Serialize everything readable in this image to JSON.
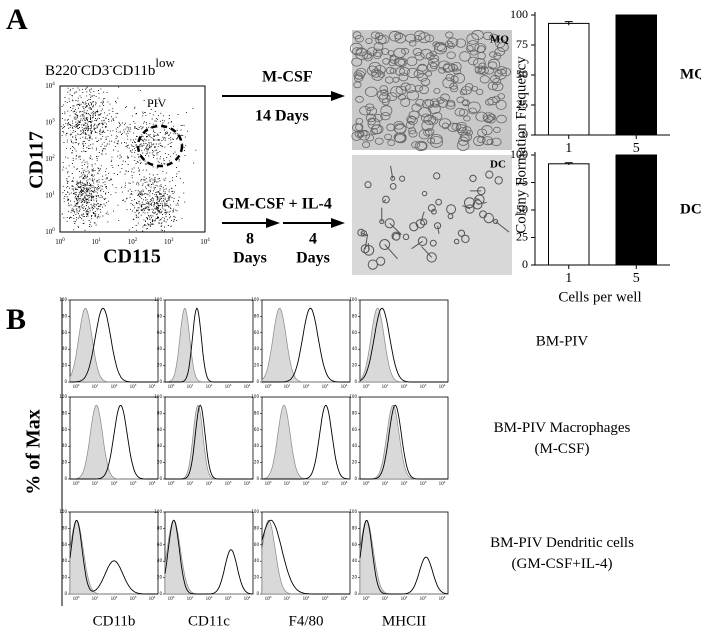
{
  "panel_a": {
    "label": "A",
    "gate_title": [
      "B220",
      "-",
      "CD3",
      "-",
      "CD11b",
      "low"
    ],
    "gate": "PIV",
    "y_axis": "CD117",
    "x_axis": "CD115",
    "tick_base": "10",
    "tick_exponents": [
      "0",
      "1",
      "2",
      "3",
      "4"
    ],
    "arrow_top": {
      "label": "M-CSF",
      "duration": "14 Days"
    },
    "arrow_bottom": {
      "label": "GM-CSF + IL-4",
      "steps": [
        {
          "number": "8",
          "unit": "Days"
        },
        {
          "number": "4",
          "unit": "Days"
        }
      ]
    },
    "images": [
      "MQ",
      "DC"
    ],
    "bar_y_axis": "Colony Formation Frequency",
    "bar_x_axis": "Cells per well"
  },
  "chart_data": [
    {
      "type": "bar",
      "title": "MQ",
      "categories": [
        "1",
        "5"
      ],
      "values": [
        93,
        100
      ],
      "errors": [
        1.5,
        null
      ],
      "colors": [
        "#ffffff",
        "#000000"
      ],
      "ylim": [
        0,
        100
      ],
      "yticks": [
        0,
        25,
        50,
        75,
        100
      ]
    },
    {
      "type": "bar",
      "title": "DC",
      "categories": [
        "1",
        "5"
      ],
      "values": [
        92,
        100
      ],
      "errors": [
        1,
        null
      ],
      "colors": [
        "#ffffff",
        "#000000"
      ],
      "ylim": [
        0,
        100
      ],
      "yticks": [
        0,
        25,
        50,
        75,
        100
      ]
    }
  ],
  "panel_b": {
    "label": "B",
    "y_axis": "% of Max",
    "columns": [
      "CD11b",
      "CD11c",
      "F4/80",
      "MHCII"
    ],
    "rows": [
      [
        "BM-PIV"
      ],
      [
        "BM-PIV Macrophages",
        "(M-CSF)"
      ],
      [
        "BM-PIV Dendritic cells",
        "(GM-CSF+IL-4)"
      ]
    ],
    "histogram_yticks": [
      0,
      20,
      40,
      60,
      80,
      100
    ]
  }
}
